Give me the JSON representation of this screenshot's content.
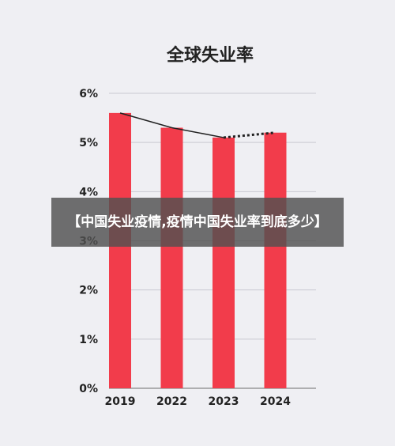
{
  "chart_data": {
    "type": "bar",
    "title": "全球失业率",
    "categories": [
      "2019",
      "2022",
      "2023",
      "2024"
    ],
    "values": [
      5.6,
      5.3,
      5.1,
      5.2
    ],
    "ylim": [
      0,
      6
    ],
    "yticks": [
      "0%",
      "1%",
      "2%",
      "3%",
      "4%",
      "5%",
      "6%"
    ],
    "grid": true,
    "bar_color": "#f23c4b",
    "trend_line": {
      "solid_until_index": 2,
      "dotted_from_index": 2,
      "color": "#222222"
    }
  },
  "overlay": {
    "text": "【中国失业疫情,疫情中国失业率到底多少】"
  }
}
